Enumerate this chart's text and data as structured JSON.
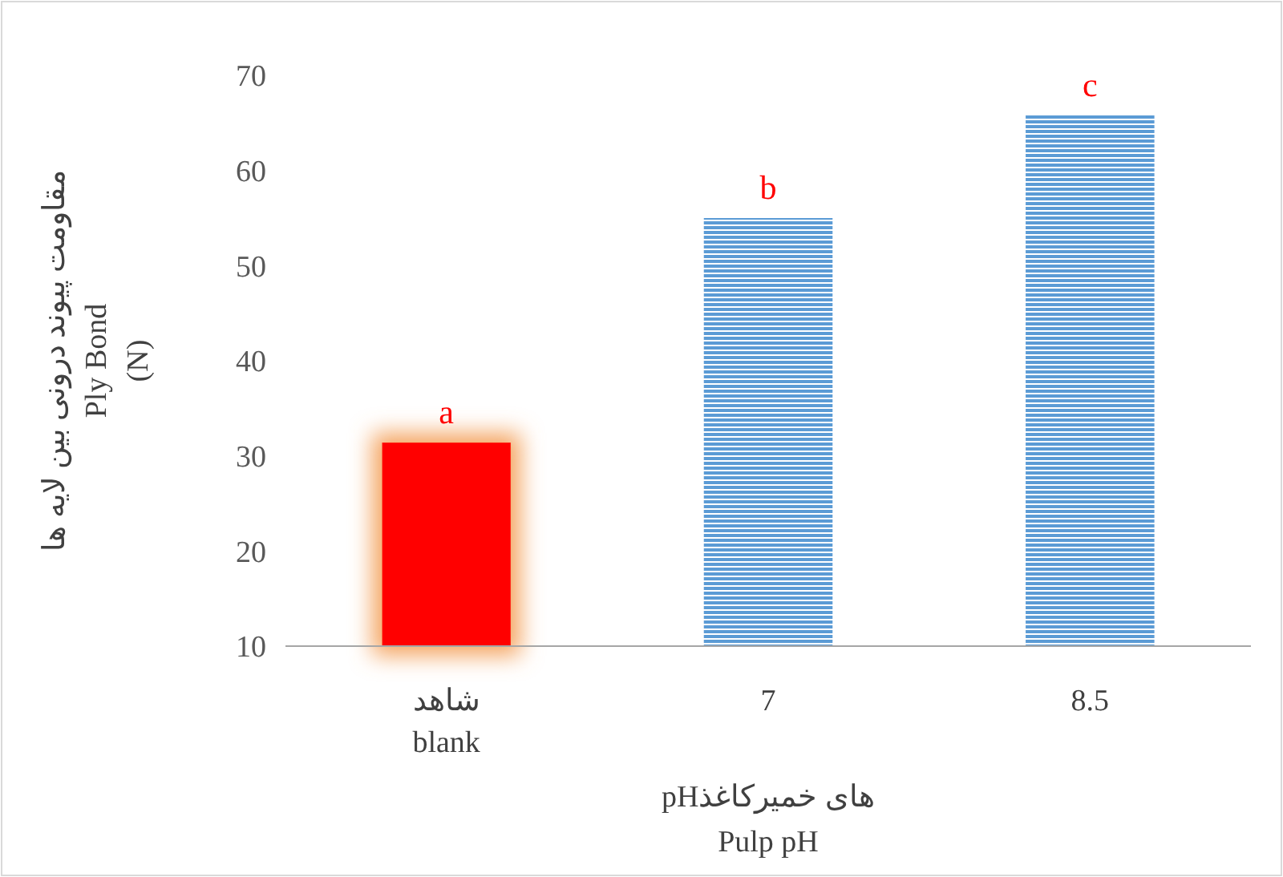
{
  "chart_data": {
    "type": "bar",
    "categories": [
      "شاهد\nblank",
      "7",
      "8.5"
    ],
    "values": [
      31.4,
      55,
      65.8
    ],
    "colors": [
      "#ff0000",
      "#5b9bd5",
      "#5b9bd5"
    ],
    "xlabel": "pHهای خمیرکاغذ\nPulp pH",
    "ylabel": "مقاومت پیوند درونی بین لایه ها\nPly Bond\n(N)",
    "ylim": [
      10,
      70
    ],
    "yticks": [
      10,
      20,
      30,
      40,
      50,
      60,
      70
    ],
    "annotations": [
      {
        "text": "a",
        "x": "شاهد\nblank",
        "y": 31.4
      },
      {
        "text": "b",
        "x": "7",
        "y": 55
      },
      {
        "text": "c",
        "x": "8.5",
        "y": 65.8
      }
    ],
    "grid": false
  }
}
